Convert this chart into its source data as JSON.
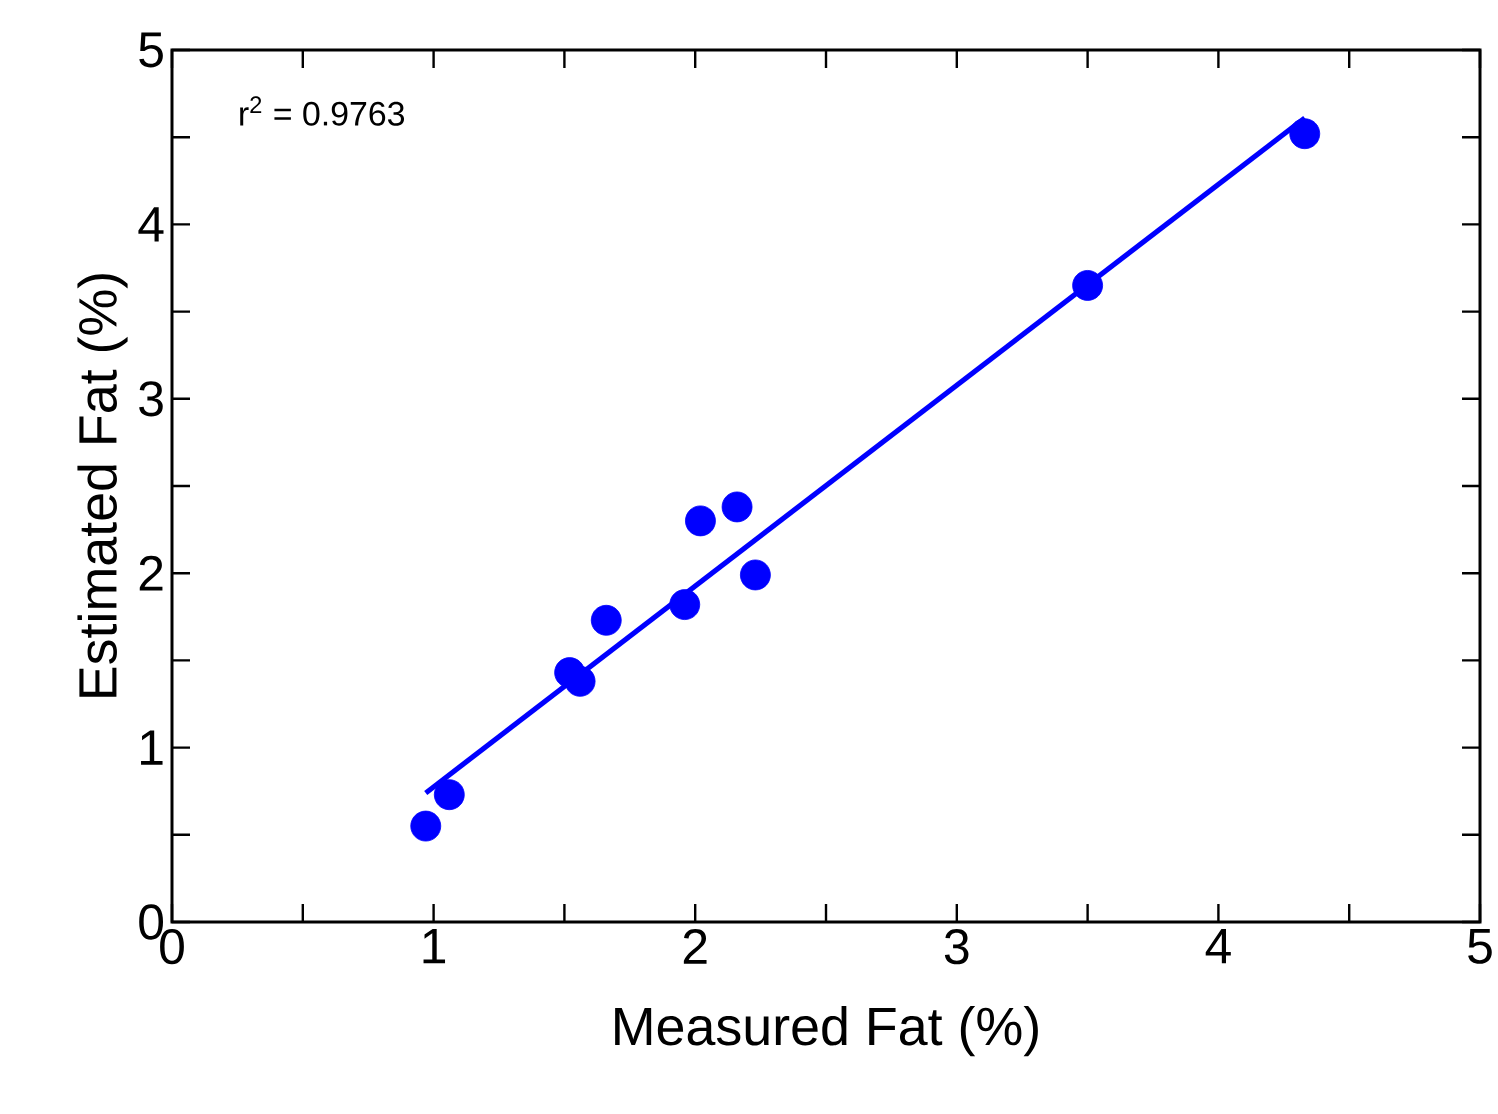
{
  "chart_data": {
    "type": "scatter",
    "xlabel": "Measured Fat (%)",
    "ylabel": "Estimated Fat (%)",
    "xlim": [
      0,
      5
    ],
    "ylim": [
      0,
      5
    ],
    "xticks": [
      0,
      {
        "value": 0.5,
        "label": null
      },
      1,
      {
        "value": 1.5,
        "label": null
      },
      2,
      {
        "value": 2.5,
        "label": null
      },
      3,
      {
        "value": 3.5,
        "label": null
      },
      4,
      {
        "value": 4.5,
        "label": null
      },
      5
    ],
    "yticks": [
      0,
      {
        "value": 0.5,
        "label": null
      },
      1,
      {
        "value": 1.5,
        "label": null
      },
      2,
      {
        "value": 2.5,
        "label": null
      },
      3,
      {
        "value": 3.5,
        "label": null
      },
      4,
      {
        "value": 4.5,
        "label": null
      },
      5
    ],
    "grid": false,
    "series": [
      {
        "color": "#0000ff",
        "marker": "circle",
        "x": [
          0.97,
          1.06,
          1.52,
          1.56,
          1.66,
          1.96,
          2.02,
          2.16,
          2.23,
          3.5,
          4.33
        ],
        "values": [
          0.55,
          0.73,
          1.43,
          1.38,
          1.73,
          1.82,
          2.3,
          2.38,
          1.99,
          3.65,
          4.52
        ]
      },
      {
        "type": "line",
        "color": "#0000ff",
        "marker": "none",
        "line_style": "solid",
        "x": [
          0.97,
          4.33
        ],
        "values": [
          0.74,
          4.61
        ]
      }
    ],
    "annotations": [
      {
        "text": "r$^{2}$ = 0.9763"
      }
    ]
  }
}
